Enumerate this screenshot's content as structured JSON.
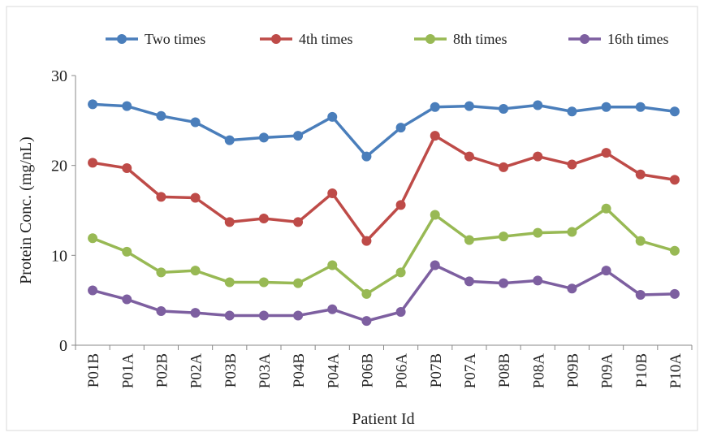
{
  "chart_data": {
    "type": "line",
    "x_label": "Patient Id",
    "y_label": "Protein Conc. (mg/nL)",
    "categories": [
      "P01B",
      "P01A",
      "P02B",
      "P02A",
      "P03B",
      "P03A",
      "P04B",
      "P04A",
      "P06B",
      "P06A",
      "P07B",
      "P07A",
      "P08B",
      "P08A",
      "P09B",
      "P09A",
      "P10B",
      "P10A"
    ],
    "series": [
      {
        "name": "Two times",
        "color": "#4a7ebb",
        "values": [
          26.8,
          26.6,
          25.5,
          24.8,
          22.8,
          23.1,
          23.3,
          25.4,
          21.0,
          24.2,
          26.5,
          26.6,
          26.3,
          26.7,
          26.0,
          26.5,
          26.5,
          26.0
        ]
      },
      {
        "name": "4th times",
        "color": "#be4b48",
        "values": [
          20.3,
          19.7,
          16.5,
          16.4,
          13.7,
          14.1,
          13.7,
          16.9,
          11.6,
          15.6,
          23.3,
          21.0,
          19.8,
          21.0,
          20.1,
          21.4,
          19.0,
          18.4
        ]
      },
      {
        "name": "8th times",
        "color": "#98b954",
        "values": [
          11.9,
          10.4,
          8.1,
          8.3,
          7.0,
          7.0,
          6.9,
          8.9,
          5.7,
          8.1,
          14.5,
          11.7,
          12.1,
          12.5,
          12.6,
          15.2,
          11.6,
          10.5
        ]
      },
      {
        "name": "16th times",
        "color": "#7d5fa0",
        "values": [
          6.1,
          5.1,
          3.8,
          3.6,
          3.3,
          3.3,
          3.3,
          4.0,
          2.7,
          3.7,
          8.9,
          7.1,
          6.9,
          7.2,
          6.3,
          8.3,
          5.6,
          5.7
        ]
      }
    ],
    "ylim": [
      0,
      30
    ],
    "yticks": [
      0,
      10,
      20,
      30
    ],
    "grid": false,
    "legend": "top"
  }
}
